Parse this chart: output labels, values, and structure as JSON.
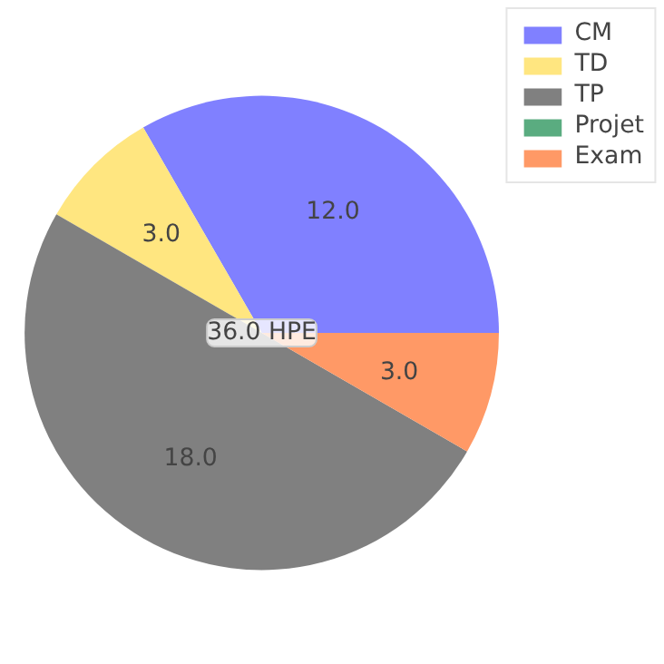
{
  "chart_data": {
    "type": "pie",
    "categories": [
      "CM",
      "TD",
      "TP",
      "Projet",
      "Exam"
    ],
    "values": [
      12,
      3,
      18,
      0,
      3
    ],
    "colors": [
      "#8080ff",
      "#ffe680",
      "#808080",
      "#5aac80",
      "#ff9966"
    ],
    "value_labels": [
      "12.0",
      "3.0",
      "18.0",
      null,
      "3.0"
    ],
    "annotations": [
      "36.0 HPE"
    ],
    "legend": "top right"
  }
}
